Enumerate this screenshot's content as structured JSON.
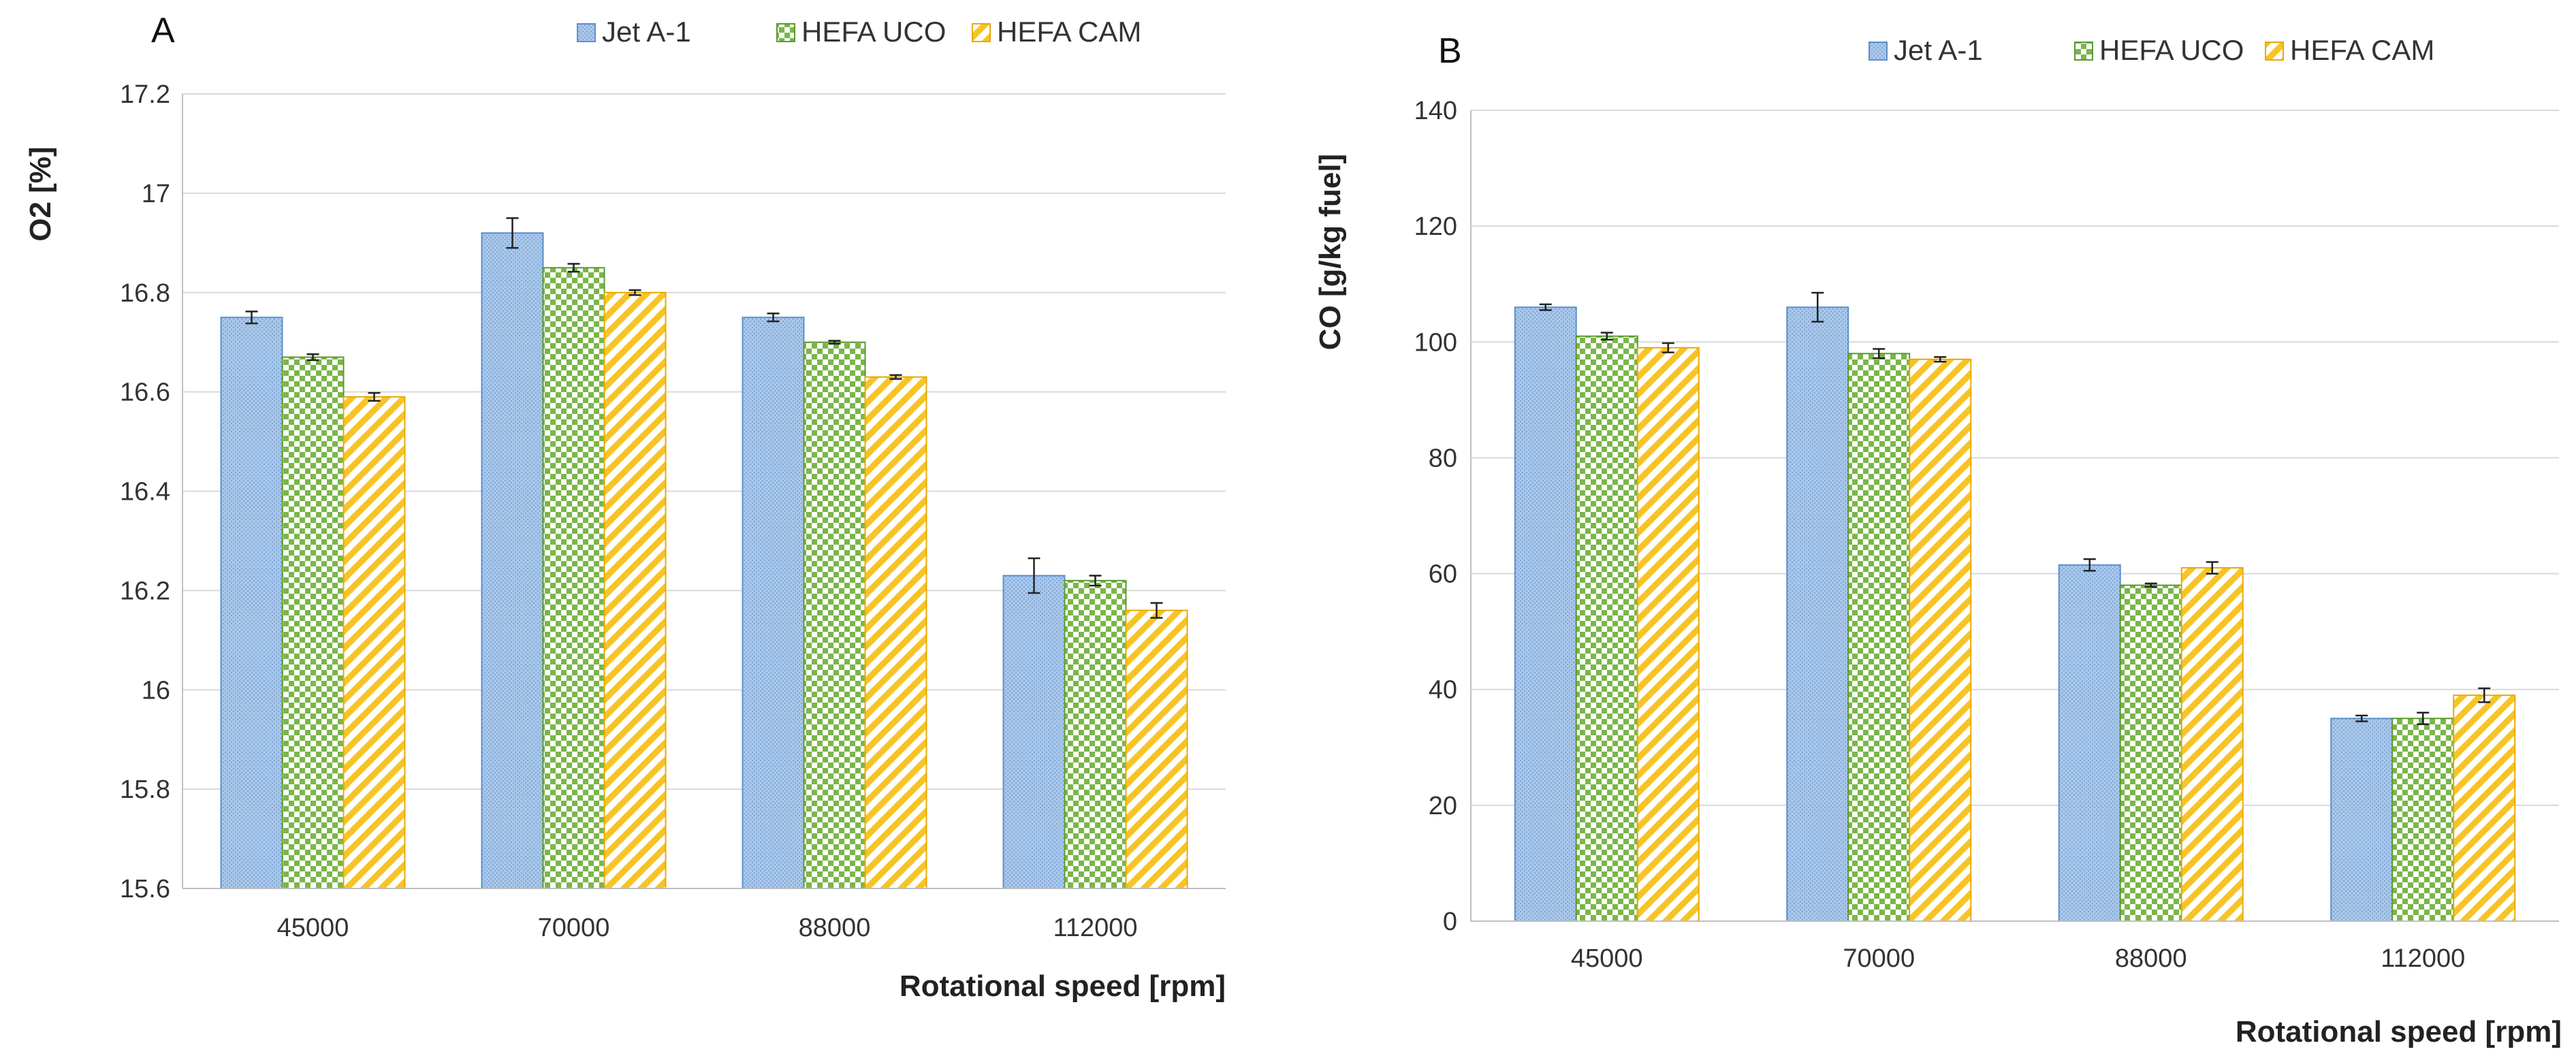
{
  "chart_data": [
    {
      "type": "bar",
      "panel": "A",
      "categories": [
        "45000",
        "70000",
        "88000",
        "112000"
      ],
      "series": [
        {
          "name": "Jet A-1",
          "values": [
            16.75,
            16.92,
            16.75,
            16.23
          ],
          "errors": [
            0.012,
            0.03,
            0.008,
            0.035
          ],
          "color": "#a9c7ea",
          "stroke": "#5b8fce",
          "pattern": "dots"
        },
        {
          "name": "HEFA UCO",
          "values": [
            16.67,
            16.85,
            16.7,
            16.22
          ],
          "errors": [
            0.006,
            0.008,
            0.003,
            0.01
          ],
          "color": "#7ab648",
          "stroke": "#5a9a2e",
          "pattern": "checker"
        },
        {
          "name": "HEFA CAM",
          "values": [
            16.59,
            16.8,
            16.63,
            16.16
          ],
          "errors": [
            0.008,
            0.005,
            0.004,
            0.015
          ],
          "color": "#f7c427",
          "stroke": "#e8a900",
          "pattern": "stripes"
        }
      ],
      "title": "",
      "xlabel": "Rotational speed [rpm]",
      "ylabel": "O2 [%]",
      "ylim": [
        15.6,
        17.2
      ],
      "yticks": [
        "15.6",
        "15.8",
        "16",
        "16.2",
        "16.4",
        "16.6",
        "16.8",
        "17",
        "17.2"
      ],
      "legend": "top-right",
      "grid": true
    },
    {
      "type": "bar",
      "panel": "B",
      "categories": [
        "45000",
        "70000",
        "88000",
        "112000"
      ],
      "series": [
        {
          "name": "Jet A-1",
          "values": [
            106,
            106,
            61.5,
            35
          ],
          "errors": [
            0.5,
            2.5,
            1.0,
            0.5
          ],
          "color": "#a9c7ea",
          "stroke": "#5b8fce",
          "pattern": "dots"
        },
        {
          "name": "HEFA UCO",
          "values": [
            101,
            98,
            58,
            35
          ],
          "errors": [
            0.6,
            0.8,
            0.3,
            1.0
          ],
          "color": "#7ab648",
          "stroke": "#5a9a2e",
          "pattern": "checker"
        },
        {
          "name": "HEFA CAM",
          "values": [
            99,
            97,
            61,
            39
          ],
          "errors": [
            0.8,
            0.4,
            1.0,
            1.2
          ],
          "color": "#f7c427",
          "stroke": "#e8a900",
          "pattern": "stripes"
        }
      ],
      "title": "",
      "xlabel": "Rotational speed [rpm]",
      "ylabel": "CO [g/kg fuel]",
      "ylim": [
        0,
        140
      ],
      "yticks": [
        "0",
        "20",
        "40",
        "60",
        "80",
        "100",
        "120",
        "140"
      ],
      "legend": "top-right",
      "grid": true
    }
  ]
}
